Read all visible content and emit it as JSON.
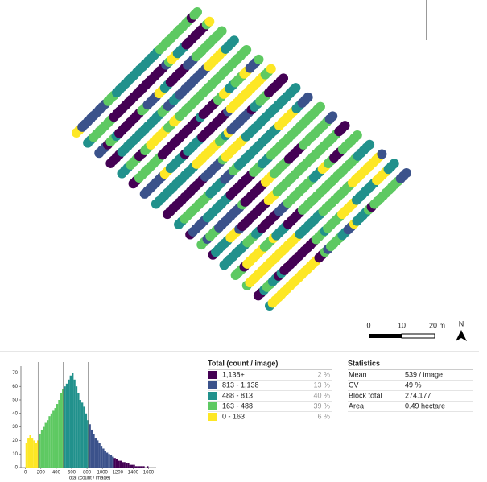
{
  "map": {
    "scale_labels": [
      "0",
      "10",
      "20 m"
    ],
    "north": "N"
  },
  "chart_data": {
    "type": "histogram",
    "xlabel": "Total (count / image)",
    "bins": [
      0,
      25,
      50,
      75,
      100,
      125,
      150,
      175,
      200,
      225,
      250,
      275,
      300,
      325,
      350,
      375,
      400,
      425,
      450,
      475,
      500,
      525,
      550,
      575,
      600,
      625,
      650,
      675,
      700,
      725,
      750,
      775,
      800,
      825,
      850,
      875,
      900,
      925,
      950,
      975,
      1000,
      1025,
      1050,
      1075,
      1100,
      1125,
      1150,
      1175,
      1200,
      1225,
      1250,
      1275,
      1300,
      1325,
      1350,
      1375,
      1400,
      1425,
      1450,
      1475,
      1500,
      1525,
      1550,
      1575,
      1600,
      1625,
      1650
    ],
    "values": [
      18,
      22,
      24,
      22,
      20,
      18,
      20,
      25,
      28,
      30,
      33,
      35,
      38,
      40,
      42,
      44,
      47,
      50,
      55,
      58,
      60,
      62,
      65,
      68,
      70,
      65,
      60,
      55,
      50,
      48,
      45,
      40,
      35,
      32,
      28,
      25,
      22,
      20,
      18,
      16,
      14,
      12,
      11,
      10,
      9,
      8,
      7,
      6,
      5,
      5,
      4,
      4,
      3,
      3,
      2,
      2,
      2,
      1,
      1,
      1,
      1,
      1,
      0,
      1,
      0,
      0
    ],
    "breaks": [
      163,
      488,
      813,
      1138
    ],
    "xlim": [
      -60,
      1700
    ],
    "ylim": [
      0,
      75
    ],
    "xticks": [
      0,
      200,
      400,
      600,
      800,
      1000,
      1200,
      1400,
      1600
    ],
    "yticks": [
      0,
      10,
      20,
      30,
      40,
      50,
      60,
      70
    ]
  },
  "legend": {
    "title": "Total (count / image)",
    "items": [
      {
        "label": "1,138+",
        "pct": "2 %",
        "color": "#440154"
      },
      {
        "label": "813 - 1,138",
        "pct": "13 %",
        "color": "#3b528b"
      },
      {
        "label": "488 - 813",
        "pct": "40 %",
        "color": "#21918c"
      },
      {
        "label": "163 - 488",
        "pct": "39 %",
        "color": "#5ec962"
      },
      {
        "label": "0 - 163",
        "pct": "6 %",
        "color": "#fde725"
      }
    ]
  },
  "statistics": {
    "title": "Statistics",
    "rows": [
      [
        "Mean",
        "539 / image"
      ],
      [
        "CV",
        "49 %"
      ],
      [
        "Block total",
        "274.177"
      ],
      [
        "Area",
        "0.49 hectare"
      ]
    ]
  }
}
